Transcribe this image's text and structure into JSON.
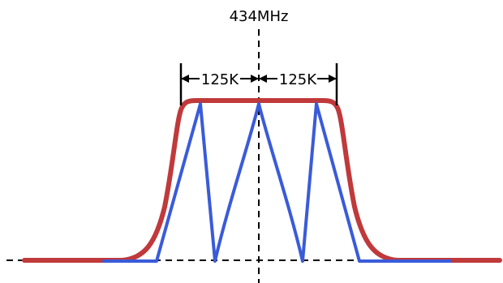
{
  "labels": {
    "center_frequency": "434MHz",
    "left_span": "125K",
    "right_span": "125K"
  },
  "colors": {
    "envelope": "#c0393b",
    "subchannel": "#3a5bd9",
    "axis": "#000000",
    "background": "#ffffff"
  }
}
